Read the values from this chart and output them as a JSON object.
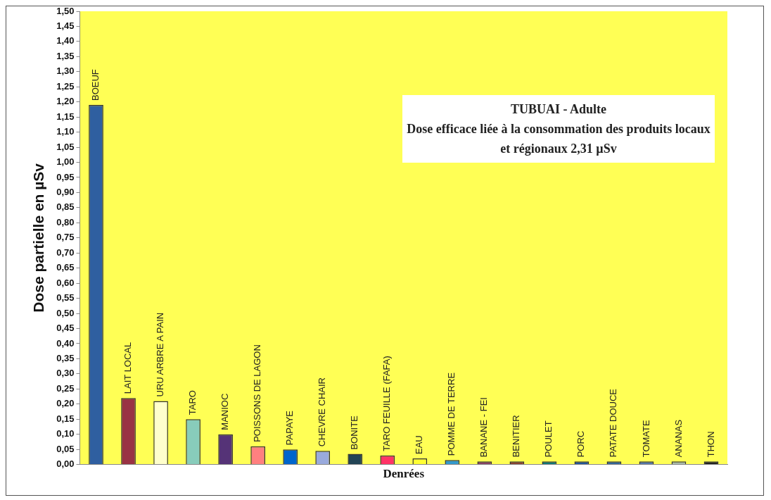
{
  "chart_data": {
    "type": "bar",
    "title": "TUBUAI - Adulte",
    "subtitle": "Dose efficace liée à la consommation des produits locaux et régionaux 2,31 µSv",
    "xlabel": "Denrées",
    "ylabel": "Dose partielle en µSv",
    "categories": [
      "BOEUF",
      "LAIT LOCAL",
      "URU ARBRE A PAIN",
      "TARO",
      "MANIOC",
      "POISSONS DE LAGON",
      "PAPAYE",
      "CHEVRE CHAIR",
      "BONITE",
      "TARO FEUILLE (FAFA)",
      "EAU",
      "POMME DE TERRE",
      "BANANE - FEI",
      "BENITIER",
      "POULET",
      "PORC",
      "PATATE DOUCE",
      "TOMATE",
      "ANANAS",
      "THON"
    ],
    "values": [
      1.19,
      0.22,
      0.21,
      0.15,
      0.1,
      0.06,
      0.05,
      0.045,
      0.035,
      0.03,
      0.02,
      0.015,
      0.01,
      0.01,
      0.01,
      0.01,
      0.01,
      0.01,
      0.01,
      0.01
    ],
    "colors": [
      "#2f5fa0",
      "#993344",
      "#ffffcc",
      "#88ccbb",
      "#553377",
      "#ff8080",
      "#0066cc",
      "#99aadd",
      "#224455",
      "#ff3366",
      "#ffff33",
      "#3399cc",
      "#884466",
      "#884433",
      "#117777",
      "#225599",
      "#336699",
      "#5577aa",
      "#aabbaa",
      "#222222"
    ],
    "ylim": [
      0,
      1.5
    ],
    "yticks": [
      {
        "value": 0,
        "label": "0,00"
      },
      {
        "value": 0.05,
        "label": "0,05"
      },
      {
        "value": 0.1,
        "label": "0,10"
      },
      {
        "value": 0.15,
        "label": "0,15"
      },
      {
        "value": 0.2,
        "label": "0,20"
      },
      {
        "value": 0.25,
        "label": "0,25"
      },
      {
        "value": 0.3,
        "label": "0,30"
      },
      {
        "value": 0.35,
        "label": "0,35"
      },
      {
        "value": 0.4,
        "label": "0,40"
      },
      {
        "value": 0.45,
        "label": "0,45"
      },
      {
        "value": 0.5,
        "label": "0,50"
      },
      {
        "value": 0.55,
        "label": "0,55"
      },
      {
        "value": 0.6,
        "label": "0,60"
      },
      {
        "value": 0.65,
        "label": "0,65"
      },
      {
        "value": 0.7,
        "label": "0,70"
      },
      {
        "value": 0.75,
        "label": "0,75"
      },
      {
        "value": 0.8,
        "label": "0,80"
      },
      {
        "value": 0.85,
        "label": "0,85"
      },
      {
        "value": 0.9,
        "label": "0,90"
      },
      {
        "value": 0.95,
        "label": "0,95"
      },
      {
        "value": 1,
        "label": "1,00"
      },
      {
        "value": 1.05,
        "label": "1,05"
      },
      {
        "value": 1.1,
        "label": "1,10"
      },
      {
        "value": 1.15,
        "label": "1,15"
      },
      {
        "value": 1.2,
        "label": "1,20"
      },
      {
        "value": 1.25,
        "label": "1,25"
      },
      {
        "value": 1.3,
        "label": "1,30"
      },
      {
        "value": 1.35,
        "label": "1,35"
      },
      {
        "value": 1.4,
        "label": "1,40"
      },
      {
        "value": 1.45,
        "label": "1,45"
      },
      {
        "value": 1.5,
        "label": "1,50"
      }
    ],
    "grid": false,
    "legend": false
  }
}
